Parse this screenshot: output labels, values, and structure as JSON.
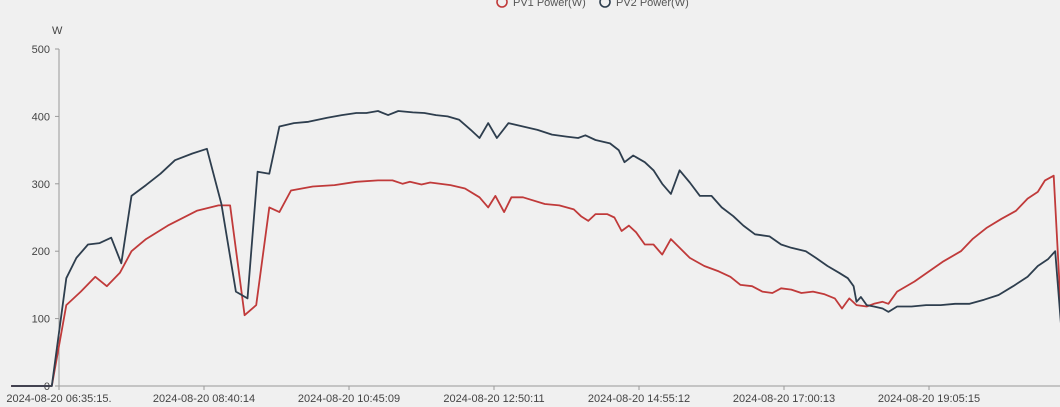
{
  "chart_data": {
    "type": "line",
    "ylabel": "W",
    "ylim": [
      0,
      500
    ],
    "yticks": [
      0,
      100,
      200,
      300,
      400,
      500
    ],
    "xtick_labels": [
      "2024-08-20 06:35:15.",
      "2024-08-20 08:40:14",
      "2024-08-20 10:45:09",
      "2024-08-20 12:50:11",
      "2024-08-20 14:55:12",
      "2024-08-20 17:00:13",
      "2024-08-20 19:05:15"
    ],
    "legend": {
      "placement": "top-center"
    },
    "grid": false,
    "series": [
      {
        "name": "PV1 Power(W)",
        "color": "#c03a3a",
        "points": [
          [
            -0.33,
            0
          ],
          [
            -0.05,
            0
          ],
          [
            0.05,
            120
          ],
          [
            0.15,
            140
          ],
          [
            0.25,
            162
          ],
          [
            0.33,
            148
          ],
          [
            0.42,
            168
          ],
          [
            0.5,
            200
          ],
          [
            0.6,
            218
          ],
          [
            0.75,
            238
          ],
          [
            0.95,
            260
          ],
          [
            1.1,
            268
          ],
          [
            1.18,
            268
          ],
          [
            1.28,
            105
          ],
          [
            1.36,
            120
          ],
          [
            1.45,
            265
          ],
          [
            1.52,
            258
          ],
          [
            1.6,
            290
          ],
          [
            1.75,
            296
          ],
          [
            1.9,
            298
          ],
          [
            2.05,
            303
          ],
          [
            2.2,
            305
          ],
          [
            2.3,
            305
          ],
          [
            2.37,
            300
          ],
          [
            2.42,
            303
          ],
          [
            2.5,
            299
          ],
          [
            2.56,
            302
          ],
          [
            2.7,
            298
          ],
          [
            2.8,
            293
          ],
          [
            2.9,
            280
          ],
          [
            2.96,
            265
          ],
          [
            3.01,
            282
          ],
          [
            3.07,
            258
          ],
          [
            3.12,
            280
          ],
          [
            3.2,
            280
          ],
          [
            3.35,
            270
          ],
          [
            3.45,
            268
          ],
          [
            3.55,
            262
          ],
          [
            3.6,
            252
          ],
          [
            3.65,
            245
          ],
          [
            3.7,
            255
          ],
          [
            3.78,
            255
          ],
          [
            3.83,
            250
          ],
          [
            3.88,
            230
          ],
          [
            3.93,
            238
          ],
          [
            3.98,
            228
          ],
          [
            4.04,
            210
          ],
          [
            4.1,
            210
          ],
          [
            4.16,
            195
          ],
          [
            4.22,
            218
          ],
          [
            4.28,
            205
          ],
          [
            4.35,
            190
          ],
          [
            4.45,
            178
          ],
          [
            4.55,
            170
          ],
          [
            4.63,
            162
          ],
          [
            4.7,
            150
          ],
          [
            4.78,
            148
          ],
          [
            4.85,
            140
          ],
          [
            4.92,
            138
          ],
          [
            4.98,
            145
          ],
          [
            5.05,
            143
          ],
          [
            5.12,
            138
          ],
          [
            5.2,
            140
          ],
          [
            5.28,
            136
          ],
          [
            5.35,
            130
          ],
          [
            5.4,
            115
          ],
          [
            5.45,
            130
          ],
          [
            5.5,
            120
          ],
          [
            5.57,
            118
          ],
          [
            5.62,
            122
          ],
          [
            5.68,
            125
          ],
          [
            5.72,
            122
          ],
          [
            5.78,
            140
          ],
          [
            5.9,
            155
          ],
          [
            6.0,
            170
          ],
          [
            6.1,
            185
          ],
          [
            6.22,
            200
          ],
          [
            6.3,
            218
          ],
          [
            6.4,
            235
          ],
          [
            6.5,
            248
          ],
          [
            6.6,
            260
          ],
          [
            6.68,
            278
          ],
          [
            6.75,
            288
          ],
          [
            6.8,
            305
          ],
          [
            6.86,
            312
          ],
          [
            6.92,
            70
          ],
          [
            6.98,
            348
          ],
          [
            7.04,
            352
          ],
          [
            7.1,
            350
          ],
          [
            7.16,
            358
          ],
          [
            7.23,
            198
          ],
          [
            7.28,
            205
          ],
          [
            7.33,
            400
          ],
          [
            7.38,
            395
          ],
          [
            7.44,
            120
          ],
          [
            7.5,
            402
          ],
          [
            7.55,
            80
          ],
          [
            7.6,
            415
          ],
          [
            7.65,
            412
          ],
          [
            7.7,
            405
          ],
          [
            7.78,
            398
          ],
          [
            7.85,
            398
          ],
          [
            7.95,
            403
          ],
          [
            8.05,
            406
          ],
          [
            8.15,
            410
          ],
          [
            8.25,
            412
          ],
          [
            8.35,
            412
          ],
          [
            8.45,
            410
          ],
          [
            8.55,
            410
          ],
          [
            8.65,
            408
          ],
          [
            8.75,
            405
          ],
          [
            8.85,
            400
          ],
          [
            8.95,
            393
          ],
          [
            9.05,
            385
          ],
          [
            9.15,
            375
          ],
          [
            9.25,
            362
          ],
          [
            9.35,
            352
          ],
          [
            9.45,
            340
          ],
          [
            9.55,
            328
          ],
          [
            9.65,
            310
          ],
          [
            9.75,
            285
          ],
          [
            9.85,
            258
          ],
          [
            9.95,
            230
          ],
          [
            10.05,
            200
          ],
          [
            10.15,
            168
          ],
          [
            10.22,
            140
          ],
          [
            10.28,
            105
          ],
          [
            10.33,
            70
          ],
          [
            10.38,
            45
          ],
          [
            10.45,
            18
          ],
          [
            10.55,
            8
          ],
          [
            10.65,
            3
          ],
          [
            10.77,
            0
          ]
        ]
      },
      {
        "name": "PV2 Power(W)",
        "color": "#2e3e4e",
        "points": [
          [
            -0.33,
            0
          ],
          [
            -0.05,
            0
          ],
          [
            0.05,
            160
          ],
          [
            0.12,
            190
          ],
          [
            0.2,
            210
          ],
          [
            0.28,
            212
          ],
          [
            0.36,
            220
          ],
          [
            0.43,
            182
          ],
          [
            0.5,
            282
          ],
          [
            0.6,
            298
          ],
          [
            0.7,
            315
          ],
          [
            0.8,
            335
          ],
          [
            0.92,
            345
          ],
          [
            1.02,
            352
          ],
          [
            1.12,
            270
          ],
          [
            1.22,
            140
          ],
          [
            1.3,
            130
          ],
          [
            1.37,
            318
          ],
          [
            1.45,
            315
          ],
          [
            1.52,
            385
          ],
          [
            1.62,
            390
          ],
          [
            1.72,
            392
          ],
          [
            1.85,
            398
          ],
          [
            1.95,
            402
          ],
          [
            2.05,
            405
          ],
          [
            2.12,
            405
          ],
          [
            2.2,
            408
          ],
          [
            2.27,
            402
          ],
          [
            2.34,
            408
          ],
          [
            2.44,
            406
          ],
          [
            2.52,
            405
          ],
          [
            2.6,
            402
          ],
          [
            2.68,
            400
          ],
          [
            2.76,
            395
          ],
          [
            2.84,
            380
          ],
          [
            2.9,
            368
          ],
          [
            2.96,
            390
          ],
          [
            3.02,
            368
          ],
          [
            3.1,
            390
          ],
          [
            3.2,
            385
          ],
          [
            3.3,
            380
          ],
          [
            3.4,
            373
          ],
          [
            3.5,
            370
          ],
          [
            3.58,
            368
          ],
          [
            3.63,
            372
          ],
          [
            3.7,
            365
          ],
          [
            3.8,
            360
          ],
          [
            3.86,
            350
          ],
          [
            3.9,
            332
          ],
          [
            3.96,
            342
          ],
          [
            4.04,
            332
          ],
          [
            4.1,
            320
          ],
          [
            4.16,
            300
          ],
          [
            4.22,
            285
          ],
          [
            4.28,
            320
          ],
          [
            4.35,
            302
          ],
          [
            4.42,
            282
          ],
          [
            4.5,
            282
          ],
          [
            4.57,
            265
          ],
          [
            4.65,
            252
          ],
          [
            4.72,
            238
          ],
          [
            4.8,
            225
          ],
          [
            4.9,
            222
          ],
          [
            4.98,
            210
          ],
          [
            5.05,
            205
          ],
          [
            5.15,
            200
          ],
          [
            5.22,
            190
          ],
          [
            5.3,
            178
          ],
          [
            5.38,
            168
          ],
          [
            5.44,
            160
          ],
          [
            5.48,
            148
          ],
          [
            5.5,
            125
          ],
          [
            5.53,
            132
          ],
          [
            5.57,
            120
          ],
          [
            5.62,
            118
          ],
          [
            5.68,
            115
          ],
          [
            5.72,
            110
          ],
          [
            5.78,
            118
          ],
          [
            5.88,
            118
          ],
          [
            5.98,
            120
          ],
          [
            6.08,
            120
          ],
          [
            6.18,
            122
          ],
          [
            6.28,
            122
          ],
          [
            6.38,
            128
          ],
          [
            6.48,
            135
          ],
          [
            6.58,
            148
          ],
          [
            6.68,
            162
          ],
          [
            6.75,
            178
          ],
          [
            6.82,
            188
          ],
          [
            6.87,
            200
          ],
          [
            6.92,
            65
          ],
          [
            6.97,
            210
          ],
          [
            7.04,
            215
          ],
          [
            7.1,
            225
          ],
          [
            7.16,
            228
          ],
          [
            7.22,
            135
          ],
          [
            7.28,
            130
          ],
          [
            7.34,
            250
          ],
          [
            7.4,
            255
          ],
          [
            7.46,
            118
          ],
          [
            7.52,
            268
          ],
          [
            7.58,
            78
          ],
          [
            7.63,
            280
          ],
          [
            7.7,
            275
          ],
          [
            7.78,
            268
          ],
          [
            7.85,
            268
          ],
          [
            7.95,
            272
          ],
          [
            8.05,
            276
          ],
          [
            8.15,
            280
          ],
          [
            8.25,
            282
          ],
          [
            8.35,
            283
          ],
          [
            8.45,
            283
          ],
          [
            8.55,
            284
          ],
          [
            8.65,
            283
          ],
          [
            8.75,
            280
          ],
          [
            8.85,
            278
          ],
          [
            8.95,
            274
          ],
          [
            9.05,
            268
          ],
          [
            9.15,
            262
          ],
          [
            9.25,
            255
          ],
          [
            9.35,
            248
          ],
          [
            9.45,
            238
          ],
          [
            9.55,
            225
          ],
          [
            9.65,
            208
          ],
          [
            9.75,
            188
          ],
          [
            9.85,
            168
          ],
          [
            9.95,
            145
          ],
          [
            10.05,
            118
          ],
          [
            10.15,
            90
          ],
          [
            10.22,
            65
          ],
          [
            10.3,
            40
          ],
          [
            10.4,
            15
          ],
          [
            10.5,
            5
          ],
          [
            10.6,
            2
          ],
          [
            10.77,
            0
          ]
        ]
      }
    ]
  }
}
